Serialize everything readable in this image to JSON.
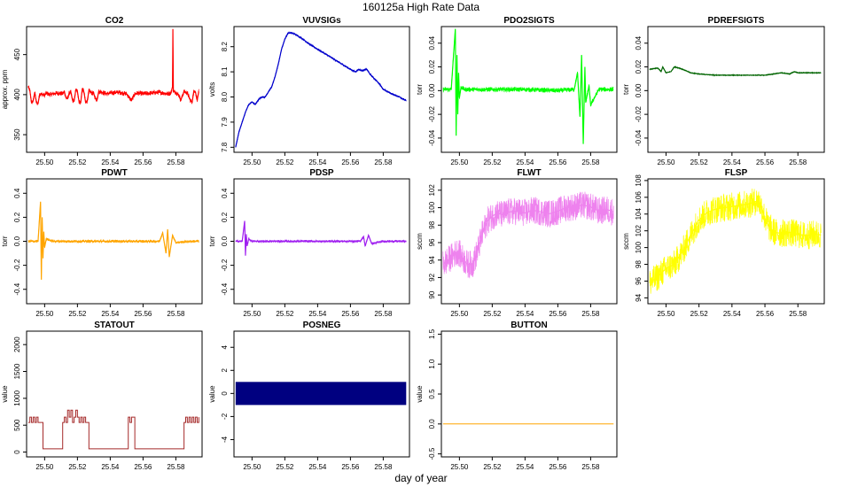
{
  "figure": {
    "title": "160125a   High Rate Data",
    "xlabel": "day of year"
  },
  "chart_data": [
    {
      "type": "line",
      "title": "CO2",
      "ylabel": "approx. ppm",
      "color": "#ff0000",
      "xlim": [
        25.489,
        25.596
      ],
      "ylim": [
        328,
        485
      ],
      "xticks": [
        25.5,
        25.52,
        25.54,
        25.56,
        25.58
      ],
      "yticks": [
        350,
        400,
        450
      ],
      "noise": 3,
      "series": [
        {
          "x": [
            25.49,
            25.491,
            25.492,
            25.493,
            25.494,
            25.495,
            25.496,
            25.497,
            25.499,
            25.5,
            25.501,
            25.502,
            25.503,
            25.505,
            25.508,
            25.511,
            25.512,
            25.513,
            25.514,
            25.515,
            25.516,
            25.517,
            25.518,
            25.519,
            25.52,
            25.521,
            25.522,
            25.523,
            25.524,
            25.525,
            25.526,
            25.527,
            25.528,
            25.53,
            25.531,
            25.532,
            25.533,
            25.535,
            25.538,
            25.54,
            25.545,
            25.55,
            25.552,
            25.553,
            25.555,
            25.557,
            25.56,
            25.565,
            25.57,
            25.575,
            25.577,
            25.578,
            25.5782,
            25.5785,
            25.58,
            25.582,
            25.583,
            25.585,
            25.587,
            25.589,
            25.59,
            25.591,
            25.592,
            25.593,
            25.594
          ],
          "y": [
            410,
            405,
            390,
            392,
            403,
            390,
            389,
            401,
            400,
            399,
            402,
            401,
            400,
            401,
            402,
            401,
            404,
            396,
            395,
            402,
            403,
            393,
            392,
            406,
            404,
            391,
            390,
            408,
            403,
            390,
            392,
            405,
            403,
            401,
            395,
            394,
            404,
            403,
            401,
            402,
            403,
            401,
            395,
            393,
            401,
            402,
            401,
            402,
            403,
            401,
            402,
            410,
            482,
            404,
            403,
            399,
            393,
            404,
            402,
            392,
            391,
            405,
            403,
            393,
            404
          ]
        }
      ]
    },
    {
      "type": "line",
      "title": "VUVSIGs",
      "ylabel": "volts",
      "color": "#0000cc",
      "xlim": [
        25.489,
        25.596
      ],
      "ylim": [
        7.78,
        8.28
      ],
      "xticks": [
        25.5,
        25.52,
        25.54,
        25.56,
        25.58
      ],
      "yticks": [
        7.8,
        7.9,
        8.0,
        8.1,
        8.2
      ],
      "noise": 0.004,
      "series": [
        {
          "x": [
            25.49,
            25.492,
            25.494,
            25.496,
            25.498,
            25.5,
            25.502,
            25.504,
            25.506,
            25.508,
            25.51,
            25.512,
            25.514,
            25.516,
            25.518,
            25.52,
            25.522,
            25.524,
            25.526,
            25.53,
            25.535,
            25.54,
            25.545,
            25.55,
            25.555,
            25.56,
            25.563,
            25.565,
            25.567,
            25.57,
            25.572,
            25.575,
            25.578,
            25.58,
            25.583,
            25.586,
            25.59,
            25.594
          ],
          "y": [
            7.8,
            7.86,
            7.9,
            7.94,
            7.97,
            7.98,
            7.97,
            7.99,
            8.0,
            8.0,
            8.02,
            8.04,
            8.08,
            8.13,
            8.19,
            8.23,
            8.255,
            8.255,
            8.25,
            8.235,
            8.21,
            8.19,
            8.17,
            8.15,
            8.13,
            8.11,
            8.1,
            8.11,
            8.105,
            8.11,
            8.09,
            8.07,
            8.05,
            8.03,
            8.02,
            8.01,
            8.0,
            7.985
          ]
        }
      ]
    },
    {
      "type": "line",
      "title": "PDO2SIGTS",
      "ylabel": "torr",
      "color": "#00ff00",
      "xlim": [
        25.489,
        25.596
      ],
      "ylim": [
        -0.052,
        0.054
      ],
      "xticks": [
        25.5,
        25.52,
        25.54,
        25.56,
        25.58
      ],
      "yticks": [
        -0.04,
        -0.02,
        0.0,
        0.02,
        0.04
      ],
      "noise": 0.002,
      "series": [
        {
          "x": [
            25.49,
            25.495,
            25.4975,
            25.498,
            25.4985,
            25.499,
            25.4995,
            25.5,
            25.501,
            25.503,
            25.52,
            25.54,
            25.56,
            25.57,
            25.572,
            25.5735,
            25.5745,
            25.5755,
            25.5765,
            25.577,
            25.579,
            25.58,
            25.585,
            25.594
          ],
          "y": [
            0.001,
            0.001,
            0.052,
            -0.038,
            0.03,
            -0.02,
            0.015,
            -0.006,
            0.003,
            0.001,
            0.001,
            0.001,
            0.0,
            0.001,
            0.015,
            -0.022,
            0.03,
            -0.045,
            0.02,
            -0.01,
            0.004,
            -0.012,
            0.001,
            0.001
          ]
        }
      ]
    },
    {
      "type": "line",
      "title": "PDREFSIGTS",
      "ylabel": "torr",
      "color": "#006400",
      "xlim": [
        25.489,
        25.596
      ],
      "ylim": [
        -0.052,
        0.054
      ],
      "xticks": [
        25.5,
        25.52,
        25.54,
        25.56,
        25.58
      ],
      "yticks": [
        -0.04,
        -0.02,
        0.0,
        0.02,
        0.04
      ],
      "noise": 0.0004,
      "series": [
        {
          "x": [
            25.49,
            25.495,
            25.497,
            25.498,
            25.5,
            25.503,
            25.505,
            25.508,
            25.51,
            25.515,
            25.52,
            25.53,
            25.54,
            25.55,
            25.56,
            25.565,
            25.57,
            25.575,
            25.578,
            25.58,
            25.585,
            25.59,
            25.594
          ],
          "y": [
            0.018,
            0.019,
            0.016,
            0.02,
            0.015,
            0.016,
            0.02,
            0.019,
            0.018,
            0.015,
            0.014,
            0.013,
            0.013,
            0.013,
            0.013,
            0.014,
            0.015,
            0.014,
            0.016,
            0.015,
            0.015,
            0.015,
            0.015
          ]
        }
      ]
    },
    {
      "type": "line",
      "title": "PDWT",
      "ylabel": "torr",
      "color": "#ffa500",
      "xlim": [
        25.489,
        25.596
      ],
      "ylim": [
        -0.52,
        0.52
      ],
      "xticks": [
        25.5,
        25.52,
        25.54,
        25.56,
        25.58
      ],
      "yticks": [
        -0.4,
        -0.2,
        0.0,
        0.2,
        0.4
      ],
      "noise": 0.012,
      "series": [
        {
          "x": [
            25.49,
            25.496,
            25.4975,
            25.498,
            25.4985,
            25.499,
            25.4995,
            25.5,
            25.501,
            25.505,
            25.52,
            25.54,
            25.56,
            25.57,
            25.572,
            25.574,
            25.575,
            25.576,
            25.578,
            25.58,
            25.59,
            25.594
          ],
          "y": [
            0.0,
            0.0,
            0.33,
            -0.32,
            0.2,
            -0.14,
            0.08,
            -0.05,
            0.02,
            0.0,
            0.0,
            0.0,
            0.0,
            0.0,
            0.07,
            -0.1,
            0.1,
            -0.13,
            0.05,
            -0.01,
            0.0,
            0.0
          ]
        }
      ]
    },
    {
      "type": "line",
      "title": "PDSP",
      "ylabel": "torr",
      "color": "#a020f0",
      "xlim": [
        25.489,
        25.596
      ],
      "ylim": [
        -0.52,
        0.52
      ],
      "xticks": [
        25.5,
        25.52,
        25.54,
        25.56,
        25.58
      ],
      "yticks": [
        -0.4,
        -0.2,
        0.0,
        0.2,
        0.4
      ],
      "noise": 0.01,
      "series": [
        {
          "x": [
            25.49,
            25.494,
            25.4955,
            25.496,
            25.4965,
            25.497,
            25.498,
            25.5,
            25.52,
            25.54,
            25.56,
            25.566,
            25.568,
            25.569,
            25.571,
            25.573,
            25.58,
            25.594
          ],
          "y": [
            0.0,
            0.0,
            0.17,
            -0.12,
            0.06,
            -0.04,
            0.02,
            0.0,
            0.0,
            0.0,
            0.0,
            0.0,
            0.04,
            -0.04,
            0.05,
            -0.02,
            0.0,
            0.0
          ]
        }
      ]
    },
    {
      "type": "line",
      "title": "FLWT",
      "ylabel": "sccm",
      "color": "#ee82ee",
      "xlim": [
        25.489,
        25.596
      ],
      "ylim": [
        89,
        103.3
      ],
      "xticks": [
        25.5,
        25.52,
        25.54,
        25.56,
        25.58
      ],
      "yticks": [
        90,
        92,
        94,
        96,
        98,
        100,
        102
      ],
      "noise": 1.6,
      "series": [
        {
          "x": [
            25.49,
            25.493,
            25.496,
            25.499,
            25.502,
            25.505,
            25.508,
            25.511,
            25.514,
            25.517,
            25.52,
            25.523,
            25.526,
            25.53,
            25.535,
            25.54,
            25.545,
            25.55,
            25.555,
            25.56,
            25.565,
            25.57,
            25.575,
            25.58,
            25.585,
            25.59,
            25.594
          ],
          "y": [
            93.5,
            94.0,
            94.5,
            95.0,
            94.2,
            93.5,
            93.5,
            95.0,
            97.0,
            98.5,
            99.0,
            99.4,
            99.2,
            99.5,
            99.6,
            99.4,
            99.7,
            99.5,
            99.3,
            99.6,
            100.0,
            100.1,
            100.3,
            100.1,
            99.6,
            99.8,
            99.5
          ]
        }
      ]
    },
    {
      "type": "line",
      "title": "FLSP",
      "ylabel": "sccm",
      "color": "#ffff00",
      "xlim": [
        25.489,
        25.596
      ],
      "ylim": [
        93.3,
        108.2
      ],
      "xticks": [
        25.5,
        25.52,
        25.54,
        25.56,
        25.58
      ],
      "yticks": [
        94,
        96,
        98,
        100,
        102,
        104,
        106,
        108
      ],
      "noise": 1.7,
      "series": [
        {
          "x": [
            25.49,
            25.495,
            25.5,
            25.505,
            25.51,
            25.515,
            25.52,
            25.525,
            25.53,
            25.54,
            25.55,
            25.556,
            25.558,
            25.56,
            25.563,
            25.566,
            25.57,
            25.575,
            25.58,
            25.585,
            25.59,
            25.594
          ],
          "y": [
            95.8,
            96.5,
            97.5,
            98.0,
            99.5,
            101.5,
            103.3,
            104.2,
            104.6,
            104.9,
            105.2,
            105.6,
            104.8,
            103.5,
            102.3,
            101.8,
            101.7,
            101.8,
            101.6,
            101.4,
            101.6,
            101.5
          ]
        }
      ]
    },
    {
      "type": "line",
      "title": "STATOUT",
      "ylabel": "value",
      "color": "#a52a2a",
      "xlim": [
        25.489,
        25.596
      ],
      "ylim": [
        -90,
        2250
      ],
      "xticks": [
        25.5,
        25.52,
        25.54,
        25.56,
        25.58
      ],
      "yticks": [
        0,
        500,
        1000,
        1500,
        2000
      ],
      "step": true,
      "noise": 0,
      "series": [
        {
          "x": [
            25.49,
            25.491,
            25.492,
            25.493,
            25.494,
            25.495,
            25.496,
            25.499,
            25.506,
            25.51,
            25.511,
            25.512,
            25.513,
            25.514,
            25.515,
            25.516,
            25.517,
            25.518,
            25.519,
            25.52,
            25.521,
            25.522,
            25.523,
            25.524,
            25.525,
            25.527,
            25.535,
            25.55,
            25.551,
            25.552,
            25.553,
            25.555,
            25.56,
            25.584,
            25.585,
            25.586,
            25.587,
            25.588,
            25.589,
            25.59,
            25.591,
            25.592,
            25.593,
            25.594
          ],
          "y": [
            550,
            650,
            550,
            650,
            550,
            650,
            550,
            60,
            60,
            60,
            550,
            650,
            550,
            780,
            650,
            780,
            550,
            650,
            780,
            650,
            550,
            650,
            550,
            650,
            550,
            60,
            60,
            60,
            650,
            550,
            650,
            60,
            60,
            60,
            550,
            650,
            550,
            650,
            550,
            650,
            550,
            650,
            550,
            650
          ]
        }
      ]
    },
    {
      "type": "area",
      "title": "POSNEG",
      "ylabel": "value",
      "color": "#000080",
      "xlim": [
        25.489,
        25.596
      ],
      "ylim": [
        -5.5,
        5.4
      ],
      "xticks": [
        25.5,
        25.52,
        25.54,
        25.56,
        25.58
      ],
      "yticks": [
        -4,
        -2,
        0,
        2,
        4
      ],
      "band": [
        -1,
        1
      ],
      "series": [
        {
          "x": [
            25.49,
            25.594
          ],
          "y": [
            1,
            1
          ]
        }
      ]
    },
    {
      "type": "line",
      "title": "BUTTON",
      "ylabel": "value",
      "color": "#ffa500",
      "xlim": [
        25.489,
        25.596
      ],
      "ylim": [
        -0.55,
        1.55
      ],
      "xticks": [
        25.5,
        25.52,
        25.54,
        25.56,
        25.58
      ],
      "yticks": [
        -0.5,
        0.0,
        0.5,
        1.0,
        1.5
      ],
      "noise": 0,
      "series": [
        {
          "x": [
            25.49,
            25.594
          ],
          "y": [
            0,
            0
          ]
        }
      ]
    }
  ]
}
